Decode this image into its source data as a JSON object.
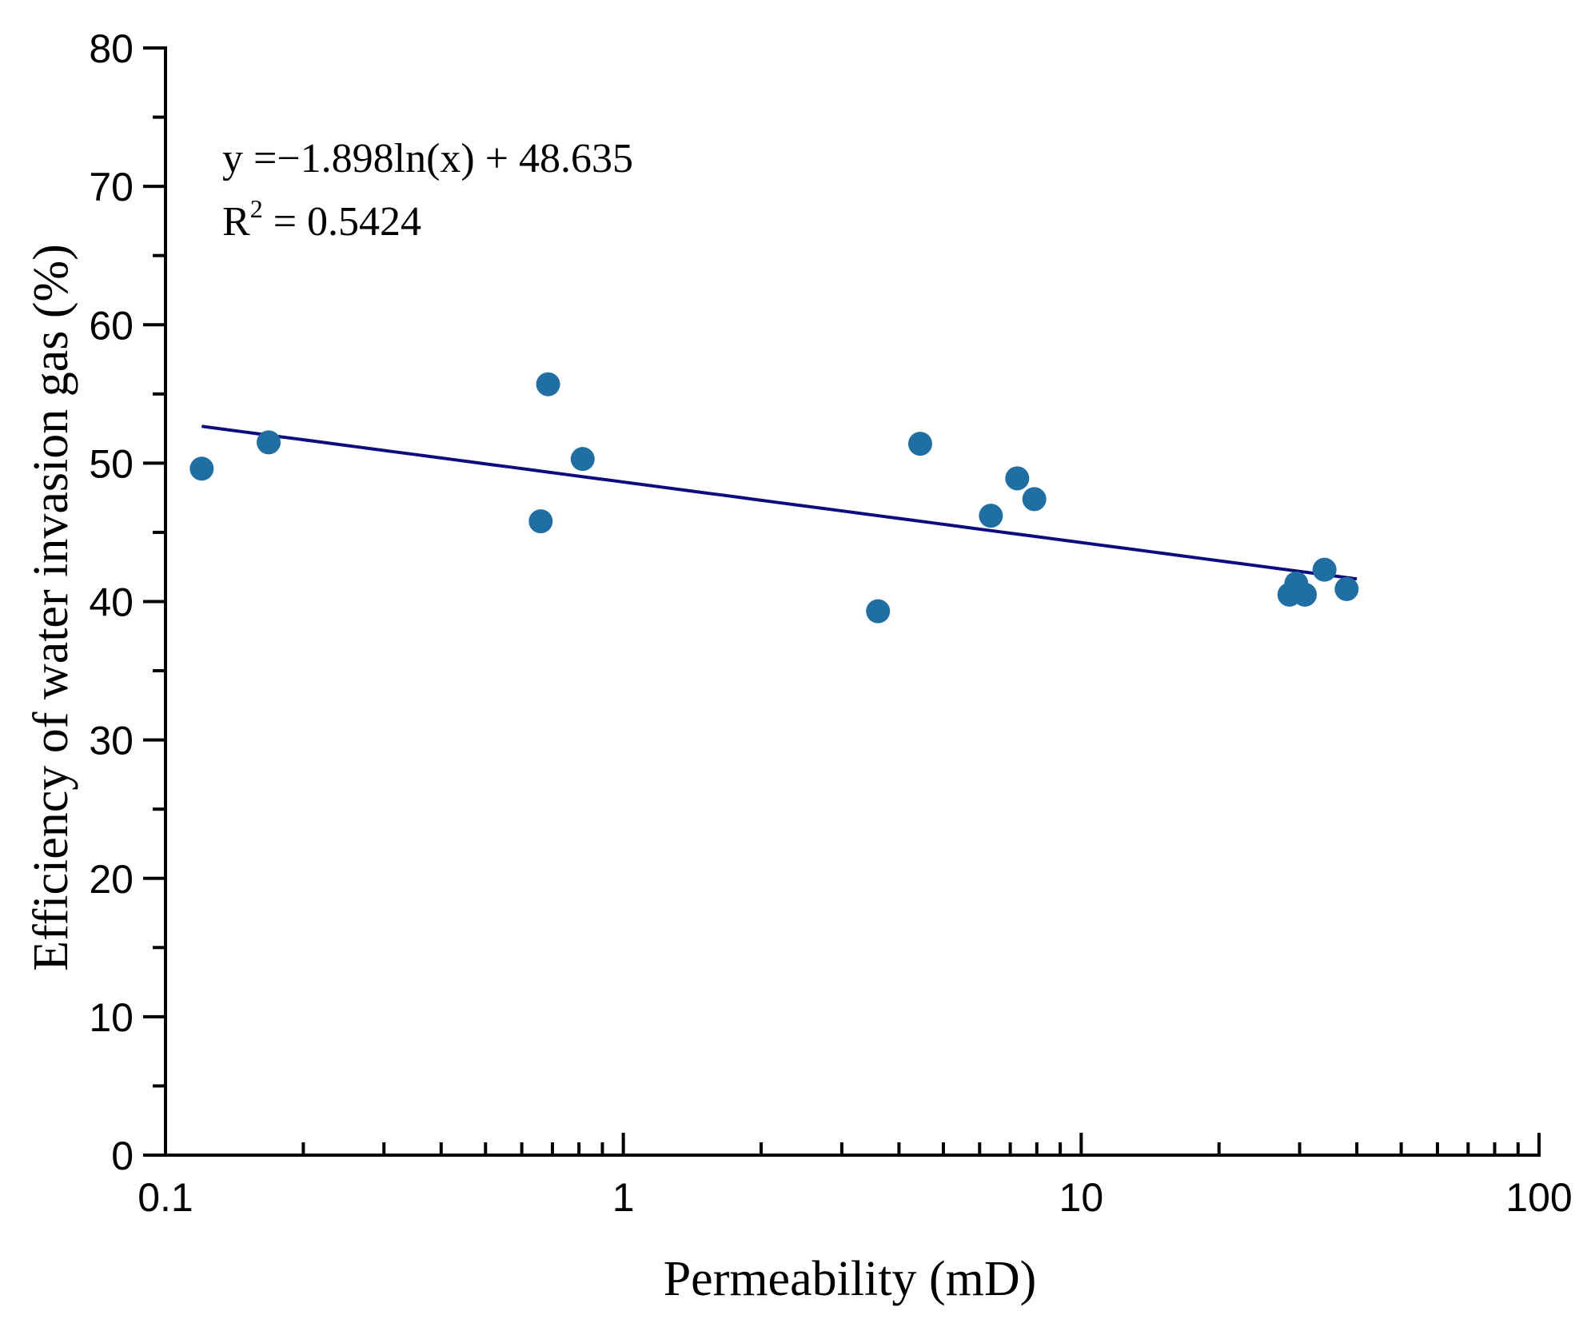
{
  "chart_data": {
    "type": "scatter",
    "xlabel": "Permeability (mD)",
    "ylabel": "Efficiency of water invasion gas (%)",
    "x_scale": "log",
    "xlim": [
      0.1,
      100
    ],
    "ylim": [
      0,
      80
    ],
    "x_ticks": [
      "0.1",
      "1",
      "10",
      "100"
    ],
    "y_ticks": [
      "0",
      "10",
      "20",
      "30",
      "40",
      "50",
      "60",
      "70",
      "80"
    ],
    "grid": false,
    "legend": "none",
    "marker_color": "#1f6fa4",
    "trendline_color": "#0c0c80",
    "points": [
      {
        "x": 0.12,
        "y": 49.6
      },
      {
        "x": 0.168,
        "y": 51.5
      },
      {
        "x": 0.66,
        "y": 45.8
      },
      {
        "x": 0.685,
        "y": 55.7
      },
      {
        "x": 0.815,
        "y": 50.3
      },
      {
        "x": 3.6,
        "y": 39.3
      },
      {
        "x": 4.45,
        "y": 51.4
      },
      {
        "x": 6.35,
        "y": 46.2
      },
      {
        "x": 7.25,
        "y": 48.9
      },
      {
        "x": 7.9,
        "y": 47.4
      },
      {
        "x": 28.5,
        "y": 40.5
      },
      {
        "x": 29.5,
        "y": 41.3
      },
      {
        "x": 30.8,
        "y": 40.5
      },
      {
        "x": 34.0,
        "y": 42.3
      },
      {
        "x": 38.0,
        "y": 40.9
      }
    ],
    "trendline": {
      "type": "logarithmic",
      "a": -1.898,
      "b": 48.635,
      "x_range": [
        0.12,
        40
      ]
    },
    "annotations": {
      "equation": "y =−1.898ln(x) + 48.635",
      "r2_prefix": "R",
      "r2_sup": "2",
      "r2_value": " = 0.5424"
    }
  }
}
